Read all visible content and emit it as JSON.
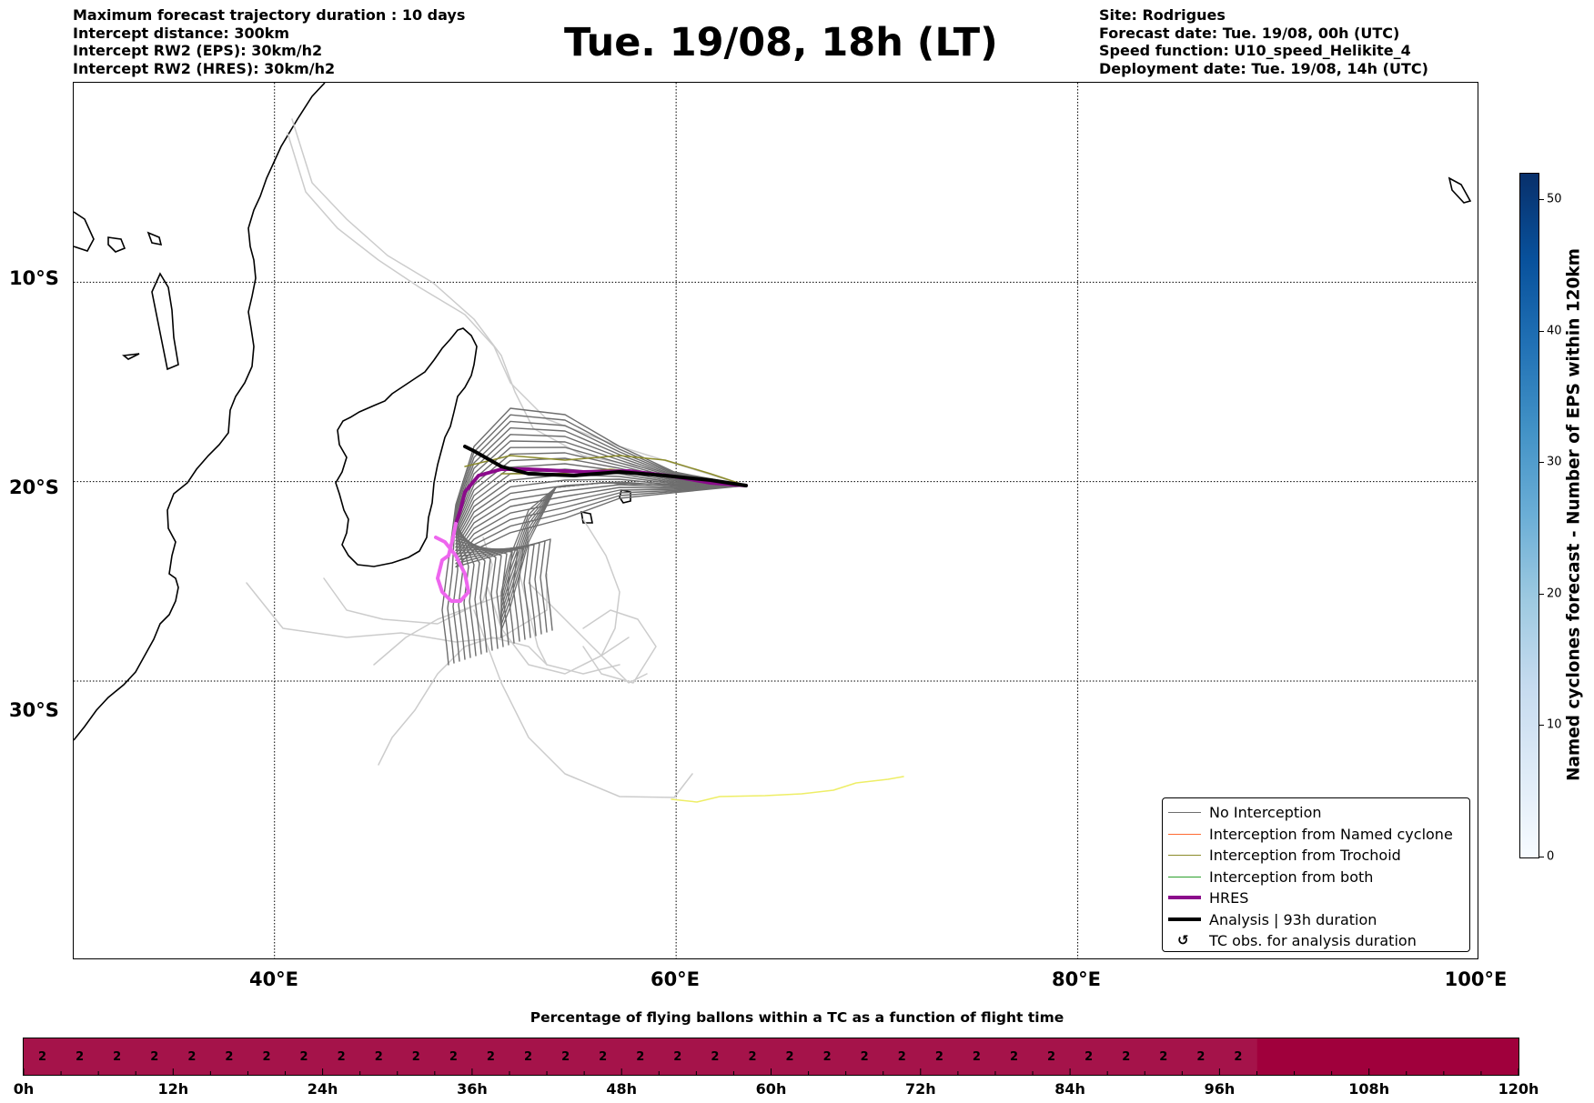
{
  "header": {
    "left_lines": [
      "Maximum forecast trajectory duration : 10 days",
      "Intercept distance: 300km",
      "Intercept RW2 (EPS):  30km/h2",
      "Intercept RW2 (HRES): 30km/h2"
    ],
    "title": "Tue. 19/08, 18h (LT)",
    "right_lines": [
      "Site: Rodrigues",
      "Forecast date: Tue. 19/08, 00h (UTC)",
      "Speed function: U10_speed_Helikite_4",
      "Deployment date: Tue. 19/08, 14h (UTC)"
    ]
  },
  "map": {
    "lat_labels": [
      "10°S",
      "20°S",
      "30°S"
    ],
    "lon_labels": [
      "40°E",
      "60°E",
      "80°E",
      "100°E"
    ],
    "lon_range": [
      30,
      100
    ],
    "lat_range": [
      0,
      -44
    ],
    "colors": {
      "no_interception": "#6e6e6e",
      "faded": "#cccccc",
      "trochoid": "#8b8b2a",
      "named_cyclone": "#ff6a33",
      "both": "#2ca02c",
      "hres": "#8b0a8b",
      "analysis": "#000000",
      "late_hres": "#ee66ee",
      "yellow_track": "#eeee66"
    }
  },
  "legend": {
    "items": [
      {
        "label": "No Interception",
        "color": "#6e6e6e",
        "width": 1.5
      },
      {
        "label": "Interception from Named cyclone",
        "color": "#ff6a33",
        "width": 1.5
      },
      {
        "label": "Interception from Trochoid",
        "color": "#8b8b2a",
        "width": 1.5
      },
      {
        "label": "Interception from both",
        "color": "#2ca02c",
        "width": 1.5
      },
      {
        "label": "HRES",
        "color": "#8b0a8b",
        "width": 4
      },
      {
        "label": "Analysis | 93h duration",
        "color": "#000000",
        "width": 4
      },
      {
        "label": "TC obs. for analysis duration",
        "symbol": "↺"
      }
    ]
  },
  "colorbar": {
    "title": "Named cyclones forecast - Number of EPS within 120km",
    "ticks": [
      "0",
      "10",
      "20",
      "30",
      "40",
      "50"
    ],
    "min": 0,
    "max": 52
  },
  "timebar": {
    "title": "Percentage of flying ballons within a TC as a function of flight time",
    "ticks": [
      "0h",
      "12h",
      "24h",
      "36h",
      "48h",
      "60h",
      "72h",
      "84h",
      "96h",
      "108h",
      "120h"
    ],
    "max_hours": 120,
    "interval_hours": 3,
    "values": [
      "2",
      "2",
      "2",
      "2",
      "2",
      "2",
      "2",
      "2",
      "2",
      "2",
      "2",
      "2",
      "2",
      "2",
      "2",
      "2",
      "2",
      "2",
      "2",
      "2",
      "2",
      "2",
      "2",
      "2",
      "2",
      "2",
      "2",
      "2",
      "2",
      "2",
      "2",
      "2",
      "2"
    ],
    "fill_color": "#a5134a",
    "empty_color": "#a0003c"
  }
}
